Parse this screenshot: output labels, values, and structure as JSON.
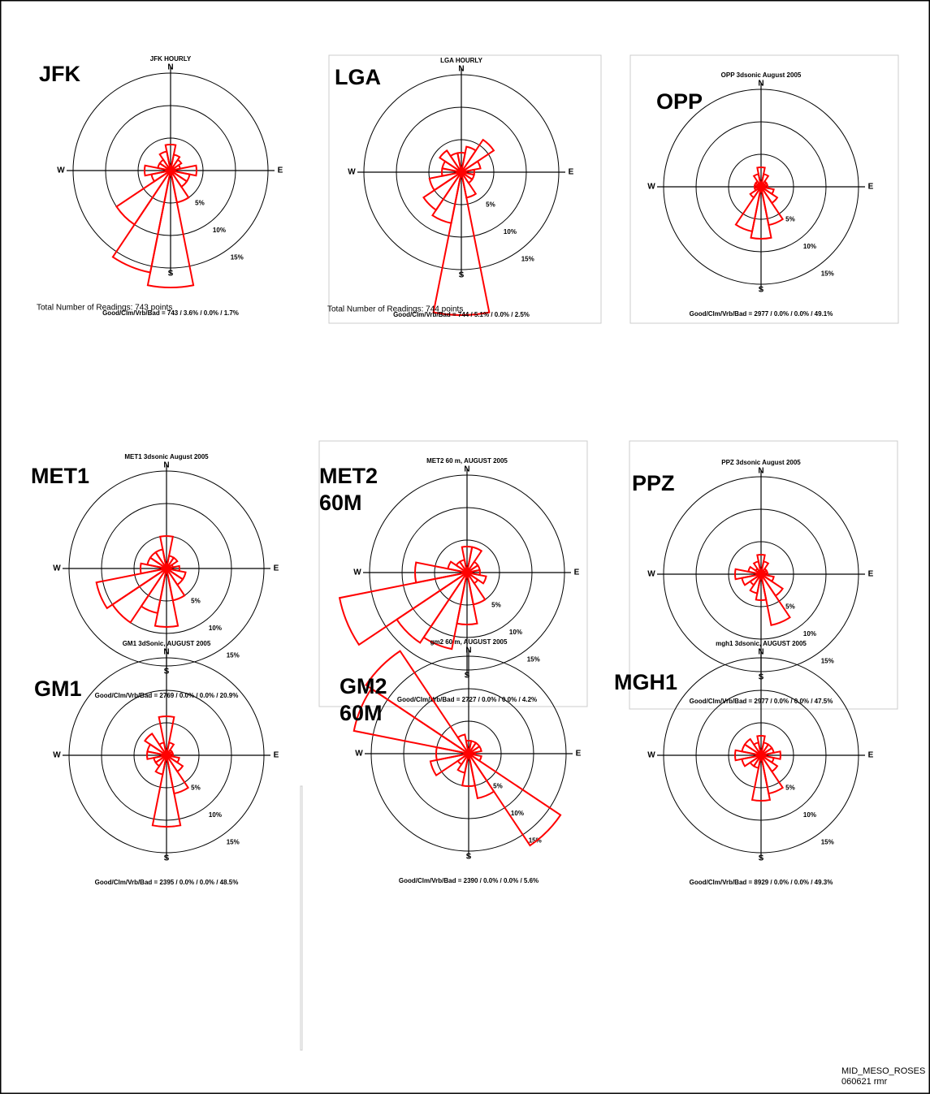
{
  "chart_data": [
    {
      "type": "wind-rose",
      "title": "JFK HOURLY",
      "label": [
        "JFK"
      ],
      "directions": [
        "N",
        "E",
        "S",
        "W"
      ],
      "rlim": [
        0,
        16
      ],
      "rticks": [
        {
          "value": 5,
          "label": "5%"
        },
        {
          "value": 10,
          "label": "10%"
        },
        {
          "value": 15,
          "label": "15%"
        }
      ],
      "color": "#ff0000",
      "values": [
        4,
        2.5,
        2,
        1.5,
        4,
        3,
        3,
        5,
        18,
        16,
        10,
        3,
        4,
        2,
        2,
        3
      ],
      "readings_text": "Total Number of Readings: 743 points",
      "footer": "Good/Clm/Vrb/Bad = 743 / 3.6% / 0.0% / 1.7%"
    },
    {
      "type": "wind-rose",
      "title": "LGA HOURLY",
      "label": [
        "LGA"
      ],
      "directions": [
        "N",
        "E",
        "S",
        "W"
      ],
      "rlim": [
        0,
        16
      ],
      "rticks": [
        {
          "value": 5,
          "label": "5%"
        },
        {
          "value": 10,
          "label": "10%"
        },
        {
          "value": 15,
          "label": "15%"
        }
      ],
      "color": "#ff0000",
      "values": [
        3,
        4,
        6,
        3,
        2,
        2,
        2,
        4,
        22,
        8,
        7,
        5,
        3,
        3,
        4,
        3
      ],
      "readings_text": "Total Number of Readings: 744 points",
      "footer": "Good/Clm/Vrb/Bad = 744 / 5.1% / 0.0% / 2.5%"
    },
    {
      "type": "wind-rose",
      "title": "OPP 3dsonic August 2005",
      "label": [
        "OPP"
      ],
      "directions": [
        "N",
        "E",
        "S",
        "W"
      ],
      "rlim": [
        0,
        16
      ],
      "rticks": [
        {
          "value": 5,
          "label": "5%"
        },
        {
          "value": 10,
          "label": "10%"
        },
        {
          "value": 15,
          "label": "15%"
        }
      ],
      "color": "#ff0000",
      "values": [
        3,
        2,
        1,
        1,
        1,
        2,
        3,
        6,
        8,
        7,
        2,
        1,
        1,
        1,
        1,
        2
      ],
      "footer": "Good/Clm/Vrb/Bad = 2977 / 0.0% / 0.0% / 49.1%"
    },
    {
      "type": "wind-rose",
      "title": "MET1 3dsonic August 2005",
      "label": [
        "MET1"
      ],
      "directions": [
        "N",
        "E",
        "S",
        "W"
      ],
      "rlim": [
        0,
        16
      ],
      "rticks": [
        {
          "value": 5,
          "label": "5%"
        },
        {
          "value": 10,
          "label": "10%"
        },
        {
          "value": 15,
          "label": "15%"
        }
      ],
      "color": "#ff0000",
      "values": [
        5,
        2,
        2,
        1,
        2,
        3,
        3,
        5,
        9,
        7,
        10,
        11,
        4,
        3,
        3,
        3
      ],
      "footer": "Good/Clm/Vrb/Bad = 2769 / 0.0% / 0.0% / 20.9%"
    },
    {
      "type": "wind-rose",
      "title": "MET2 60 m, AUGUST 2005",
      "label": [
        "MET2",
        "60M"
      ],
      "directions": [
        "N",
        "E",
        "S",
        "W"
      ],
      "rlim": [
        0,
        16
      ],
      "rticks": [
        {
          "value": 5,
          "label": "5%"
        },
        {
          "value": 10,
          "label": "10%"
        },
        {
          "value": 15,
          "label": "15%"
        }
      ],
      "color": "#ff0000",
      "values": [
        4,
        4,
        2,
        2,
        2,
        3,
        2,
        5,
        8,
        12,
        13,
        20,
        8,
        3,
        2,
        2
      ],
      "footer": "Good/Clm/Vrb/Bad = 2727 / 0.0% / 0.0% / 4.2%"
    },
    {
      "type": "wind-rose",
      "title": "PPZ 3dsonic August 2005",
      "label": [
        "PPZ"
      ],
      "directions": [
        "N",
        "E",
        "S",
        "W"
      ],
      "rlim": [
        0,
        16
      ],
      "rticks": [
        {
          "value": 5,
          "label": "5%"
        },
        {
          "value": 10,
          "label": "10%"
        },
        {
          "value": 15,
          "label": "15%"
        }
      ],
      "color": "#ff0000",
      "values": [
        3,
        2,
        1,
        1,
        1,
        2,
        4,
        8,
        4,
        3,
        2,
        3,
        4,
        2,
        1,
        2
      ],
      "footer": "Good/Clm/Vrb/Bad = 2977 / 0.0% / 0.0% / 47.5%"
    },
    {
      "type": "wind-rose",
      "title": "GM1 3dSonic, AUGUST 2005",
      "label": [
        "GM1"
      ],
      "directions": [
        "N",
        "E",
        "S",
        "W"
      ],
      "rlim": [
        0,
        16
      ],
      "rticks": [
        {
          "value": 5,
          "label": "5%"
        },
        {
          "value": 10,
          "label": "10%"
        },
        {
          "value": 15,
          "label": "15%"
        }
      ],
      "color": "#ff0000",
      "values": [
        6,
        2,
        1,
        1,
        1,
        2,
        3,
        6,
        11,
        3,
        2,
        2,
        3,
        3,
        4,
        2
      ],
      "footer": "Good/Clm/Vrb/Bad = 2395 / 0.0% / 0.0% / 48.5%"
    },
    {
      "type": "wind-rose",
      "title": "gm2 60 m, AUGUST 2005",
      "label": [
        "GM2",
        "60M"
      ],
      "directions": [
        "N",
        "E",
        "S",
        "W"
      ],
      "rlim": [
        0,
        16
      ],
      "rticks": [
        {
          "value": 5,
          "label": "5%"
        },
        {
          "value": 10,
          "label": "10%"
        },
        {
          "value": 15,
          "label": "15%"
        }
      ],
      "color": "#ff0000",
      "values": [
        2,
        2,
        2,
        2,
        1,
        2,
        17,
        7,
        5,
        3,
        2,
        6,
        5,
        18,
        19,
        3
      ],
      "footer": "Good/Clm/Vrb/Bad = 2390 / 0.0% / 0.0% / 5.6%"
    },
    {
      "type": "wind-rose",
      "title": "mgh1 3dsonic, AUGUST 2005",
      "label": [
        "MGH1"
      ],
      "directions": [
        "N",
        "E",
        "S",
        "W"
      ],
      "rlim": [
        0,
        16
      ],
      "rticks": [
        {
          "value": 5,
          "label": "5%"
        },
        {
          "value": 10,
          "label": "10%"
        },
        {
          "value": 15,
          "label": "15%"
        }
      ],
      "color": "#ff0000",
      "values": [
        3,
        2,
        2,
        2,
        3,
        2,
        3,
        6,
        7,
        2,
        2,
        3,
        4,
        3,
        3,
        2
      ],
      "footer": "Good/Clm/Vrb/Bad = 8929 / 0.0% / 0.0% / 49.3%"
    }
  ],
  "footer_lines": [
    "MID_MESO_ROSES",
    "060621 rmr"
  ]
}
